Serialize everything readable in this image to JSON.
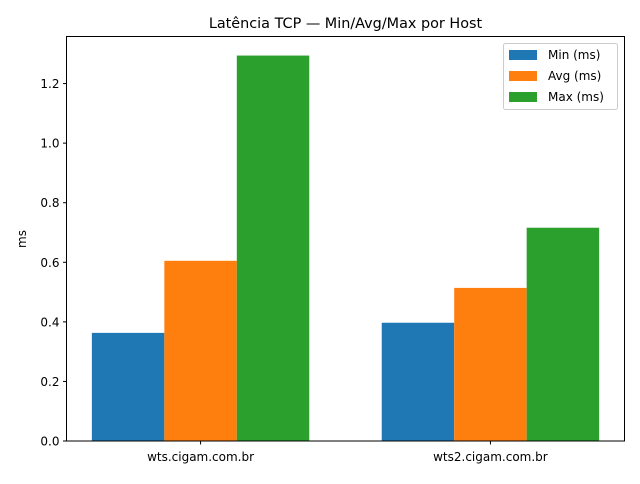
{
  "chart_data": {
    "type": "bar",
    "title": "Latência TCP — Min/Avg/Max por Host",
    "xlabel": "",
    "ylabel": "ms",
    "categories": [
      "wts.cigam.com.br",
      "wts2.cigam.com.br"
    ],
    "series": [
      {
        "name": "Min (ms)",
        "color": "#1f77b4",
        "values": [
          0.363,
          0.397
        ]
      },
      {
        "name": "Avg (ms)",
        "color": "#ff7f0e",
        "values": [
          0.605,
          0.514
        ]
      },
      {
        "name": "Max (ms)",
        "color": "#2ca02c",
        "values": [
          1.294,
          0.716
        ]
      }
    ],
    "ylim": [
      0,
      1.358
    ],
    "yticks": [
      "0.0",
      "0.2",
      "0.4",
      "0.6",
      "0.8",
      "1.0",
      "1.2"
    ],
    "grid": false,
    "legend_position": "top-right"
  }
}
